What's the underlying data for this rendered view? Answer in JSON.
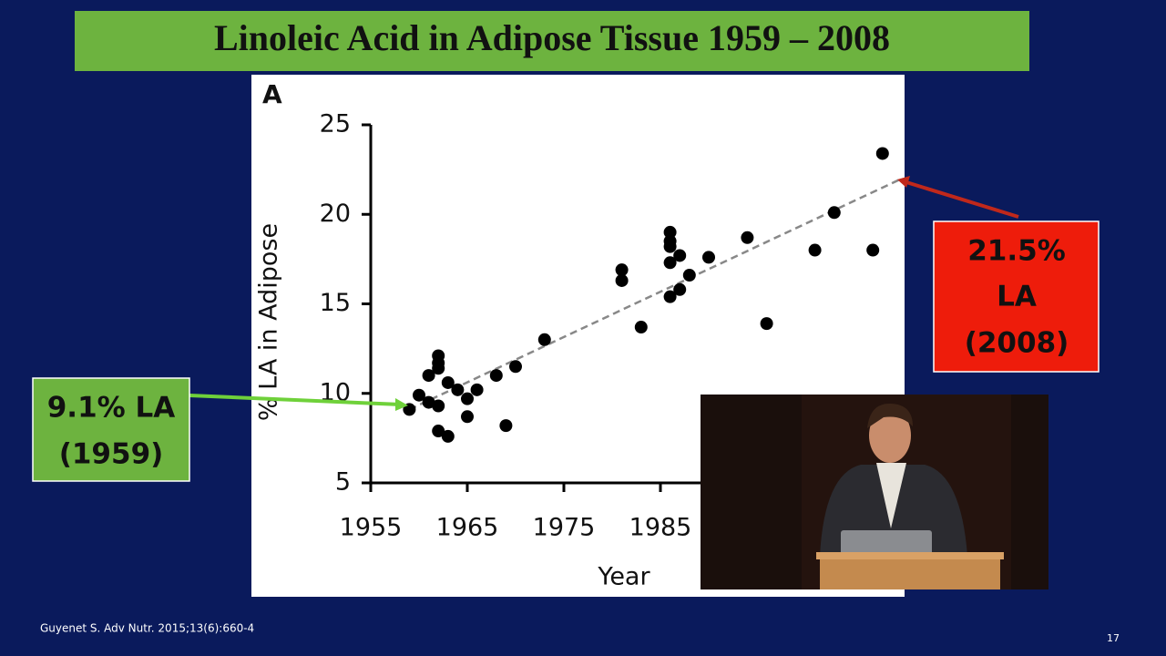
{
  "slide": {
    "title": "Linoleic Acid in Adipose Tissue 1959 – 2008",
    "left_callout": [
      "9.1% LA",
      "(1959)"
    ],
    "right_callout": [
      "21.5%",
      "LA",
      "(2008)"
    ],
    "citation": "Guyenet S. Adv Nutr. 2015;13(6):660-4",
    "page": "17"
  },
  "chart_data": {
    "type": "scatter",
    "panel": "A",
    "xlabel": "Year",
    "ylabel": "% LA in Adipose",
    "x": [
      1959,
      1960,
      1961,
      1961,
      1962,
      1962,
      1962,
      1962,
      1962,
      1963,
      1963,
      1964,
      1965,
      1965,
      1966,
      1968,
      1969,
      1970,
      1973,
      1981,
      1981,
      1983,
      1986,
      1986,
      1986,
      1987,
      1986,
      1987,
      1986,
      1988,
      1990,
      1994,
      1996,
      2001,
      2003,
      2007,
      2008
    ],
    "values": [
      9.1,
      9.9,
      11.0,
      9.5,
      12.1,
      11.7,
      11.4,
      9.3,
      7.9,
      10.6,
      7.6,
      10.2,
      9.7,
      8.7,
      10.2,
      11.0,
      8.2,
      11.5,
      13.0,
      16.9,
      16.3,
      13.7,
      18.2,
      19.0,
      18.5,
      17.7,
      17.3,
      15.8,
      15.4,
      16.6,
      17.6,
      18.7,
      13.9,
      18.0,
      20.1,
      18.0,
      23.4
    ],
    "color": "#000000",
    "trend": {
      "x": [
        1959,
        2010
      ],
      "values": [
        9.1,
        22.0
      ],
      "color": "#888888"
    },
    "xlim": [
      1955,
      2010
    ],
    "xticks": [
      1955,
      1965,
      1975,
      1985
    ],
    "ylim": [
      5,
      25
    ],
    "yticks": [
      5,
      10,
      15,
      20,
      25
    ]
  }
}
